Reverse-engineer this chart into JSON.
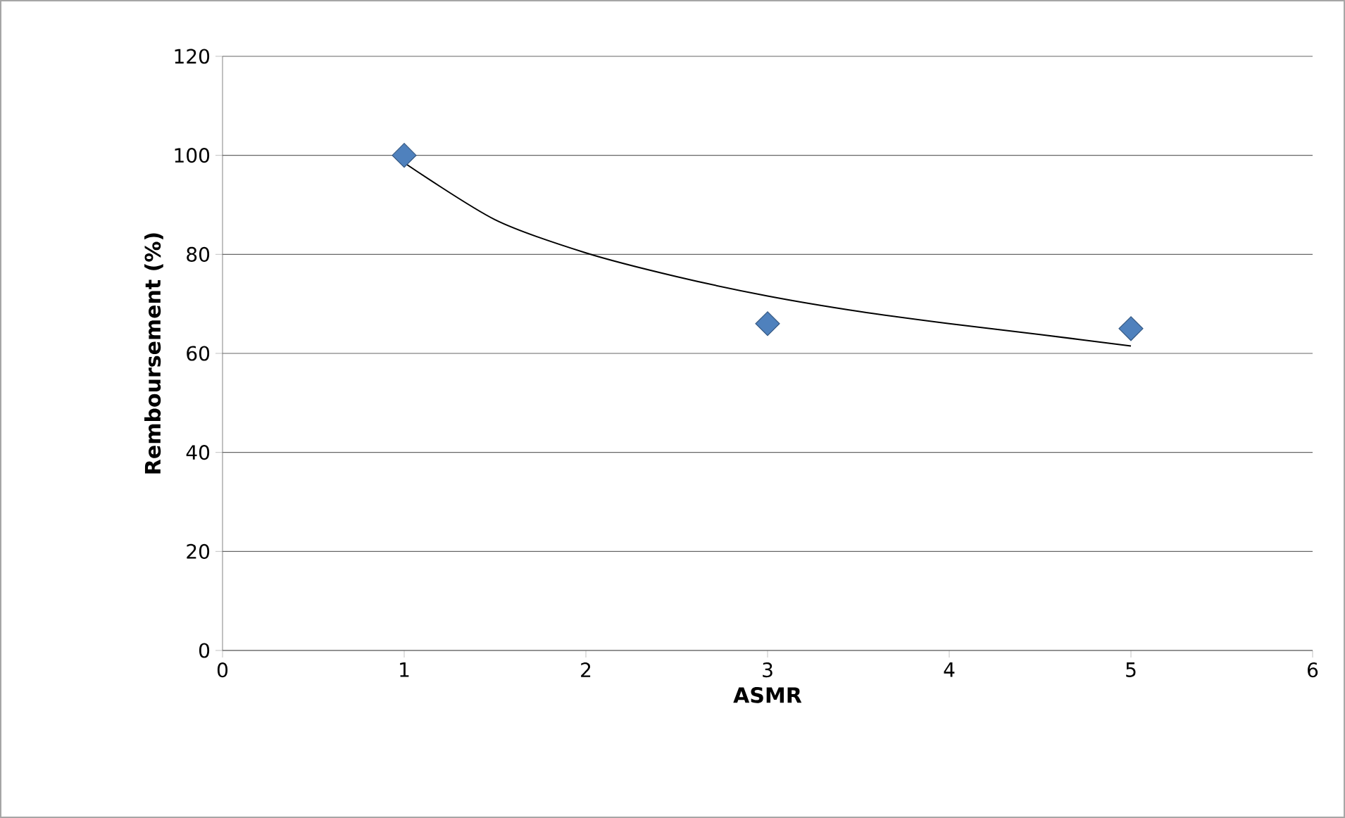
{
  "chart_data": {
    "type": "scatter",
    "xlabel": "ASMR",
    "ylabel": "Remboursement (%)",
    "xlim": [
      0,
      6
    ],
    "ylim": [
      0,
      120
    ],
    "xticks": [
      0,
      1,
      2,
      3,
      4,
      5,
      6
    ],
    "yticks": [
      0,
      20,
      40,
      60,
      80,
      100,
      120
    ],
    "grid": "y",
    "marker": "diamond",
    "x": [
      1,
      3,
      5
    ],
    "series": [
      {
        "color": "#4f81bd",
        "values": [
          100,
          66,
          65
        ]
      },
      {
        "type": "line",
        "color": "#000000",
        "marker": "none",
        "x": [
          1,
          1.5,
          2,
          2.5,
          3,
          3.5,
          4,
          4.5,
          5
        ],
        "values": [
          98.5,
          87,
          80.3,
          75.5,
          71.6,
          68.5,
          66,
          63.8,
          61.5
        ]
      }
    ]
  }
}
